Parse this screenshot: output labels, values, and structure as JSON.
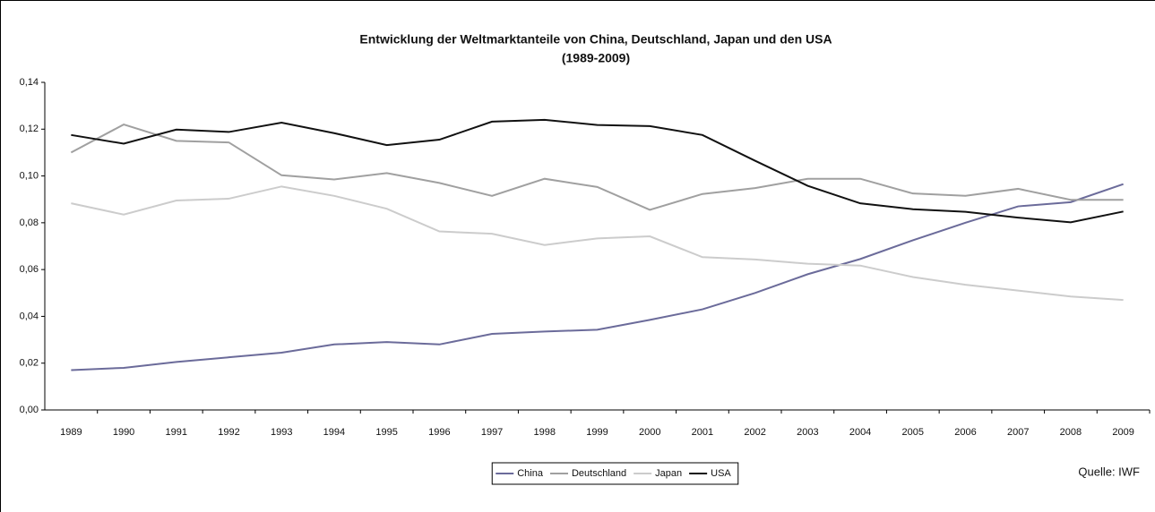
{
  "chart_data": {
    "type": "line",
    "title": "Entwicklung der Weltmarktanteile von China, Deutschland, Japan und den USA",
    "subtitle": "(1989-2009)",
    "annotation": "Quelle: IWF",
    "categories": [
      "1989",
      "1990",
      "1991",
      "1992",
      "1993",
      "1994",
      "1995",
      "1996",
      "1997",
      "1998",
      "1999",
      "2000",
      "2001",
      "2002",
      "2003",
      "2004",
      "2005",
      "2006",
      "2007",
      "2008",
      "2009"
    ],
    "series": [
      {
        "name": "China",
        "color": "#6b6b9a",
        "values": [
          0.017,
          0.018,
          0.0205,
          0.0225,
          0.0245,
          0.028,
          0.029,
          0.028,
          0.0325,
          0.0335,
          0.0343,
          0.0385,
          0.043,
          0.05,
          0.058,
          0.0645,
          0.0725,
          0.08,
          0.087,
          0.0888,
          0.0965
        ]
      },
      {
        "name": "Deutschland",
        "color": "#a0a0a0",
        "values": [
          0.11,
          0.122,
          0.115,
          0.1143,
          0.1003,
          0.0985,
          0.1012,
          0.097,
          0.0915,
          0.0988,
          0.0953,
          0.0855,
          0.0923,
          0.0948,
          0.0988,
          0.0988,
          0.0925,
          0.0915,
          0.0945,
          0.0898,
          0.0898
        ]
      },
      {
        "name": "Japan",
        "color": "#cccccc",
        "values": [
          0.0883,
          0.0835,
          0.0895,
          0.0903,
          0.0955,
          0.0915,
          0.086,
          0.0763,
          0.0753,
          0.0705,
          0.0733,
          0.0742,
          0.0653,
          0.0643,
          0.0625,
          0.0617,
          0.0568,
          0.0535,
          0.051,
          0.0485,
          0.047
        ]
      },
      {
        "name": "USA",
        "color": "#111111",
        "values": [
          0.1175,
          0.1138,
          0.1198,
          0.1188,
          0.1228,
          0.1183,
          0.1132,
          0.1155,
          0.1232,
          0.124,
          0.1218,
          0.1213,
          0.1175,
          0.1065,
          0.0958,
          0.0883,
          0.0858,
          0.0847,
          0.0822,
          0.0802,
          0.0848
        ]
      }
    ],
    "ylim": [
      0,
      0.14
    ],
    "yticks": [
      {
        "value": 0,
        "label": "0,00"
      },
      {
        "value": 0.02,
        "label": "0,02"
      },
      {
        "value": 0.04,
        "label": "0,04"
      },
      {
        "value": 0.06,
        "label": "0,06"
      },
      {
        "value": 0.08,
        "label": "0,08"
      },
      {
        "value": 0.1,
        "label": "0,10"
      },
      {
        "value": 0.12,
        "label": "0,12"
      },
      {
        "value": 0.14,
        "label": "0,14"
      }
    ],
    "grid": false,
    "legend": "bottom"
  }
}
